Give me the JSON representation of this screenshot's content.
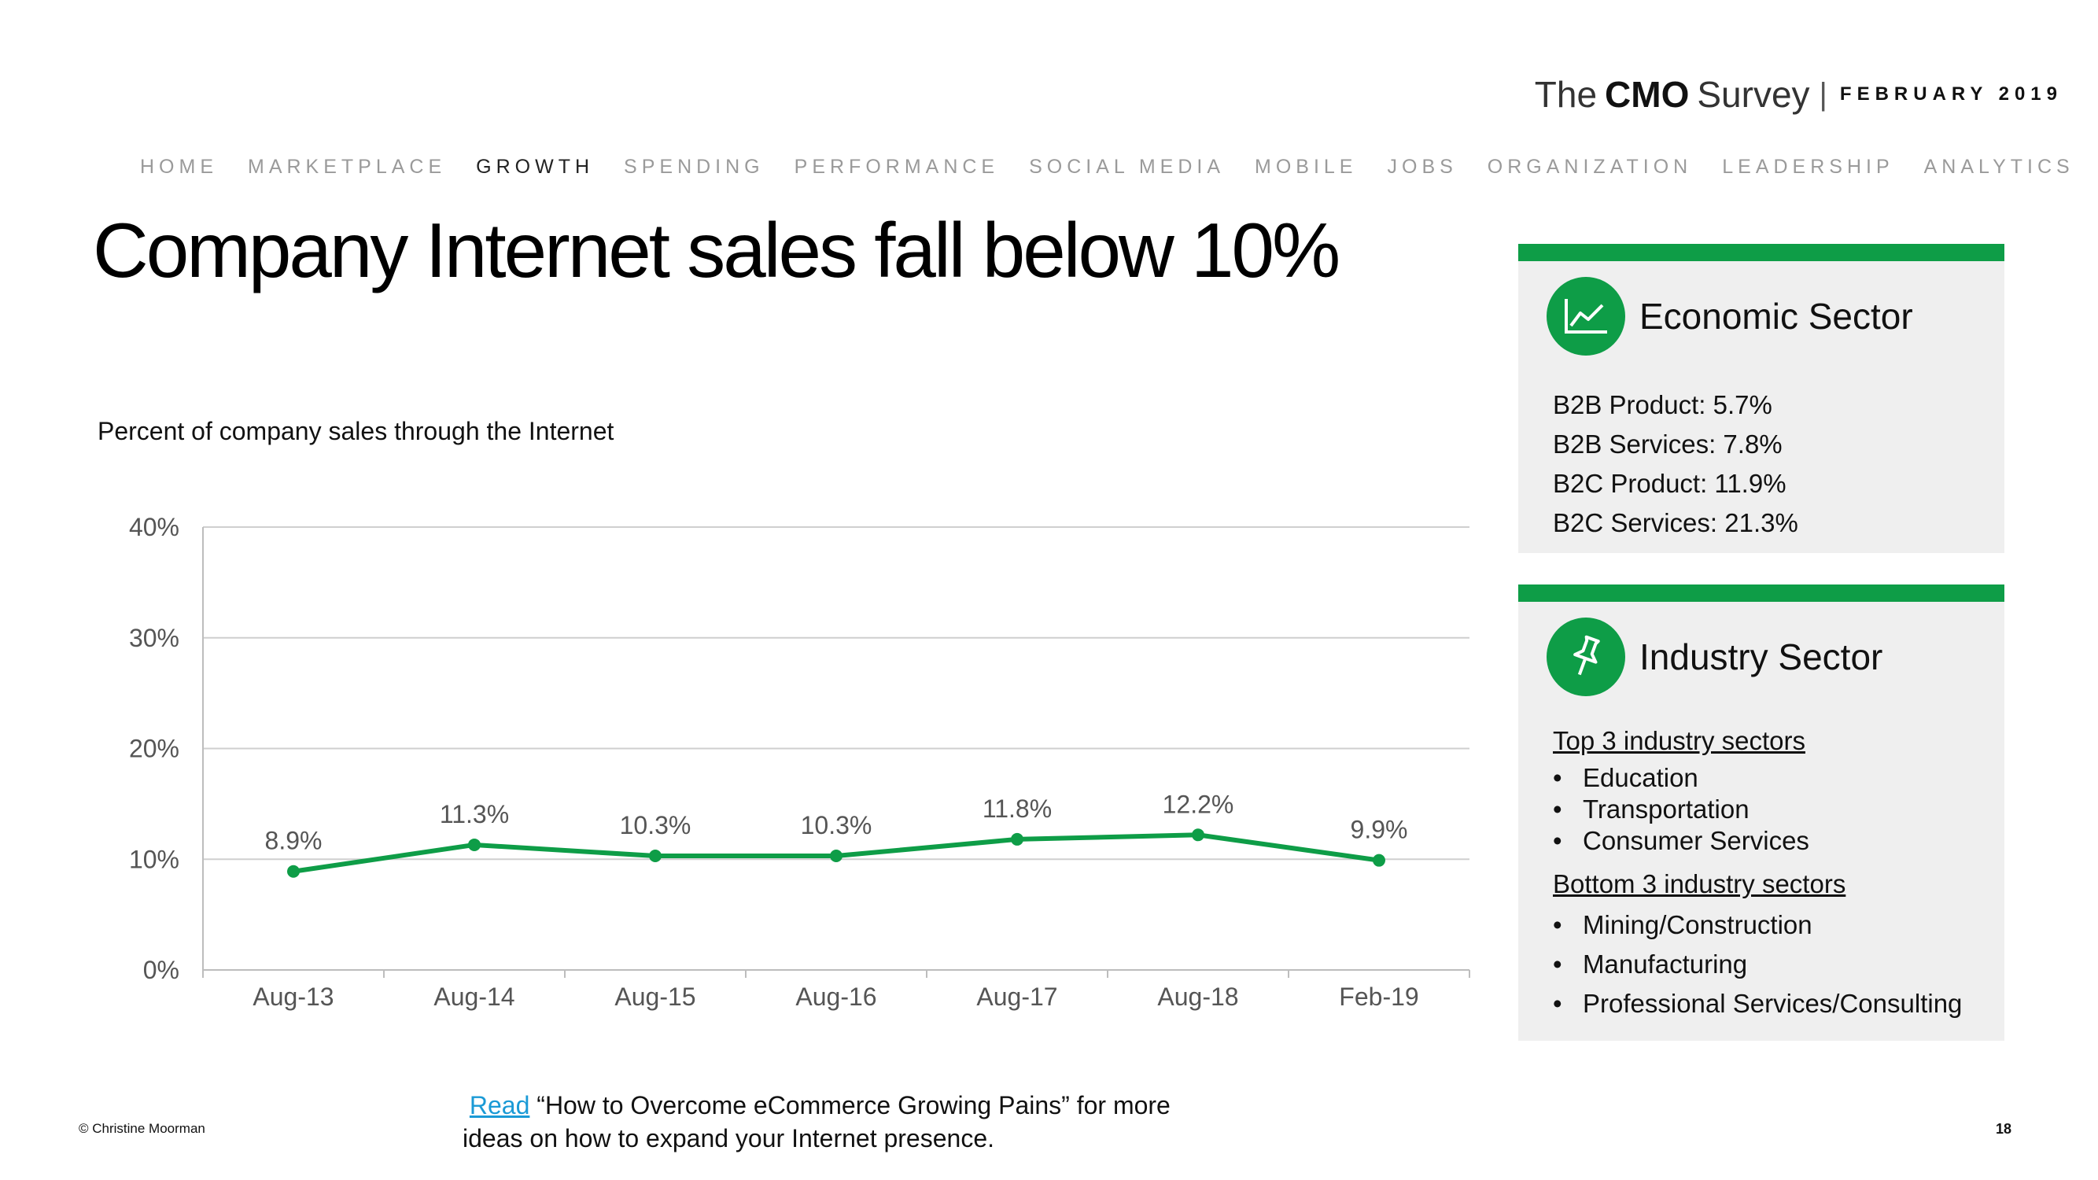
{
  "brand": {
    "the": "The",
    "cmo": "CMO",
    "survey": "Survey",
    "separator": "|",
    "date": "FEBRUARY 2019"
  },
  "nav": {
    "items": [
      {
        "label": "HOME",
        "active": false
      },
      {
        "label": "MARKETPLACE",
        "active": false
      },
      {
        "label": "GROWTH",
        "active": true
      },
      {
        "label": "SPENDING",
        "active": false
      },
      {
        "label": "PERFORMANCE",
        "active": false
      },
      {
        "label": "SOCIAL MEDIA",
        "active": false
      },
      {
        "label": "MOBILE",
        "active": false
      },
      {
        "label": "JOBS",
        "active": false
      },
      {
        "label": "ORGANIZATION",
        "active": false
      },
      {
        "label": "LEADERSHIP",
        "active": false
      },
      {
        "label": "ANALYTICS",
        "active": false
      }
    ]
  },
  "title": "Company Internet sales fall below 10%",
  "chart_data": {
    "type": "line",
    "title": "Percent of company sales through the Internet",
    "xlabel": "",
    "ylabel": "",
    "categories": [
      "Aug-13",
      "Aug-14",
      "Aug-15",
      "Aug-16",
      "Aug-17",
      "Aug-18",
      "Feb-19"
    ],
    "series": [
      {
        "values": [
          8.9,
          11.3,
          10.3,
          10.3,
          11.8,
          12.2,
          9.9
        ],
        "labels": [
          "8.9%",
          "11.3%",
          "10.3%",
          "10.3%",
          "11.8%",
          "12.2%",
          "9.9%"
        ]
      }
    ],
    "ylim": [
      0,
      40
    ],
    "yticks": [
      0,
      10,
      20,
      30,
      40
    ],
    "ytick_labels": [
      "0%",
      "10%",
      "20%",
      "30%",
      "40%"
    ],
    "grid": true,
    "color": "#0e9d47"
  },
  "economic": {
    "heading": "Economic Sector",
    "icon": "line-chart-icon",
    "items": [
      "B2B Product: 5.7%",
      "B2B Services: 7.8%",
      "B2C Product: 11.9%",
      "B2C Services: 21.3%"
    ]
  },
  "industry": {
    "heading": "Industry Sector",
    "icon": "pushpin-icon",
    "top_label": "Top 3 industry sectors",
    "top": [
      "Education",
      "Transportation",
      "Consumer Services"
    ],
    "bottom_label": "Bottom 3 industry sectors",
    "bottom": [
      "Mining/Construction",
      "Manufacturing",
      "Professional Services/Consulting"
    ],
    "bullet": "•"
  },
  "read": {
    "link": "Read",
    "text": " “How to Overcome eCommerce Growing Pains” for more ideas on how to expand your Internet presence."
  },
  "footer": {
    "copyright": "© Christine Moorman",
    "page": "18"
  },
  "colors": {
    "accent": "#0e9d47",
    "link": "#1a9ad6",
    "card_bg": "#efefef"
  }
}
